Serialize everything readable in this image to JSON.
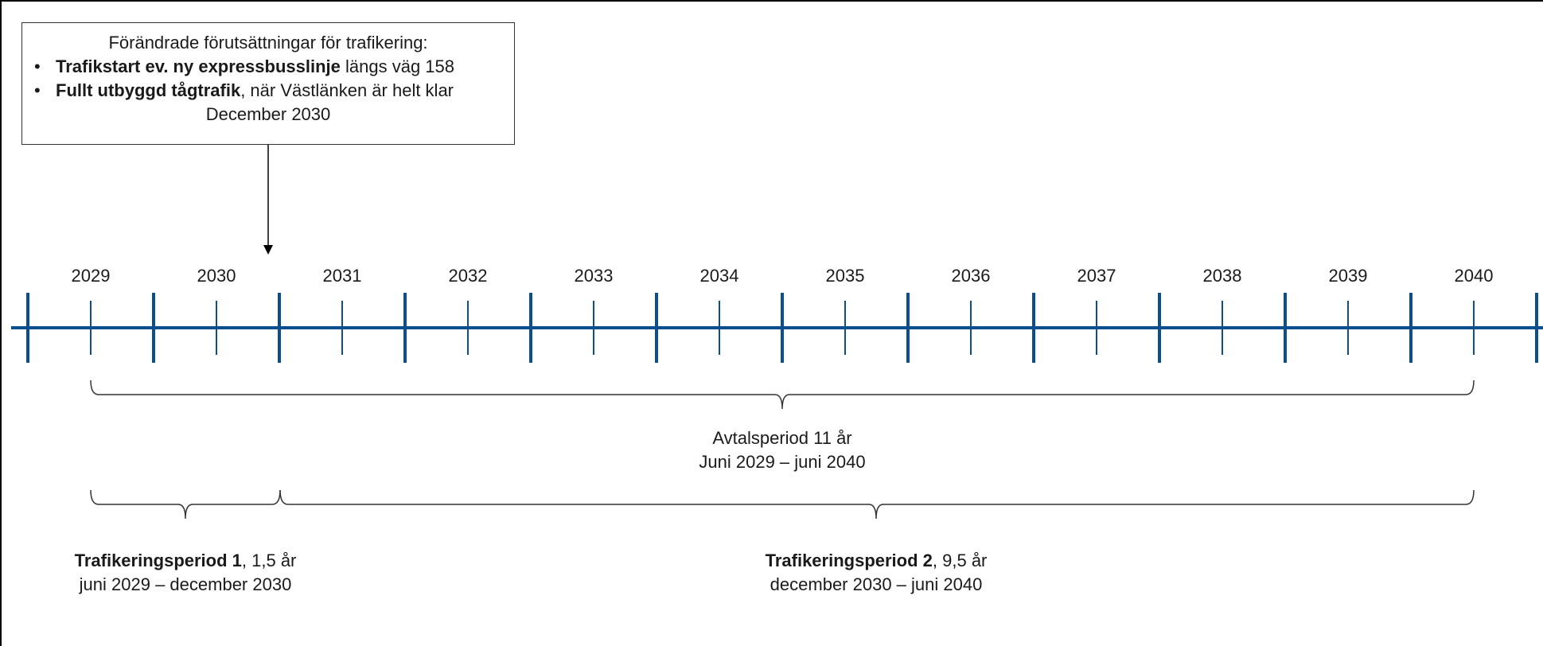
{
  "callout": {
    "title": "Förändrade förutsättningar för trafikering:",
    "bullets": [
      {
        "bold": "Trafikstart ev. ny expressbusslinje",
        "rest": " längs väg 158"
      },
      {
        "bold": "Fullt utbyggd tågtrafik",
        "rest": ", när Västlänken är helt klar"
      }
    ],
    "tail": "December 2030",
    "bullet_glyph": "•"
  },
  "timeline": {
    "years": [
      "2029",
      "2030",
      "2031",
      "2032",
      "2033",
      "2034",
      "2035",
      "2036",
      "2037",
      "2038",
      "2039",
      "2040"
    ],
    "line_color": "#0b4f8f"
  },
  "brackets": {
    "contract": {
      "line1": "Avtalsperiod 11 år",
      "line2": "Juni 2029 – juni 2040"
    },
    "period1": {
      "bold": "Trafikeringsperiod 1",
      "rest": ", 1,5 år",
      "line2": "juni 2029 – december 2030"
    },
    "period2": {
      "bold": "Trafikeringsperiod 2",
      "rest": ", 9,5 år",
      "line2": "december 2030 – juni 2040"
    }
  }
}
